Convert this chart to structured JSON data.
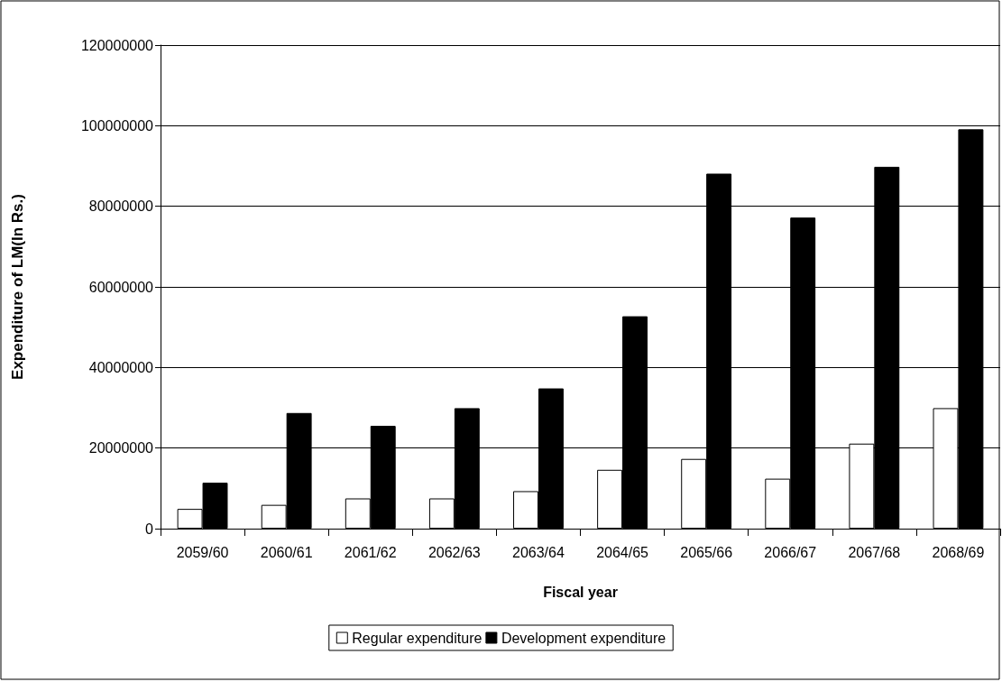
{
  "chart_data": {
    "type": "bar",
    "xlabel": "Fiscal year",
    "ylabel": "Expenditure of LM(In Rs.)",
    "categories": [
      "2059/60",
      "2060/61",
      "2061/62",
      "2062/63",
      "2063/64",
      "2064/65",
      "2065/66",
      "2066/67",
      "2067/68",
      "2068/69"
    ],
    "series": [
      {
        "name": "Regular expenditure",
        "color": "#ffffff",
        "values": [
          4900000,
          5900000,
          7500000,
          7500000,
          9300000,
          14600000,
          17300000,
          12400000,
          21100000,
          29900000
        ]
      },
      {
        "name": "Development expenditure",
        "color": "#000000",
        "values": [
          11400000,
          28700000,
          25500000,
          29900000,
          34800000,
          52700000,
          88100000,
          77200000,
          89800000,
          99100000
        ]
      }
    ],
    "ylim": [
      0,
      120000000
    ],
    "yticks": [
      0,
      20000000,
      40000000,
      60000000,
      80000000,
      100000000,
      120000000
    ],
    "grid": "y",
    "legend": "bottom"
  }
}
